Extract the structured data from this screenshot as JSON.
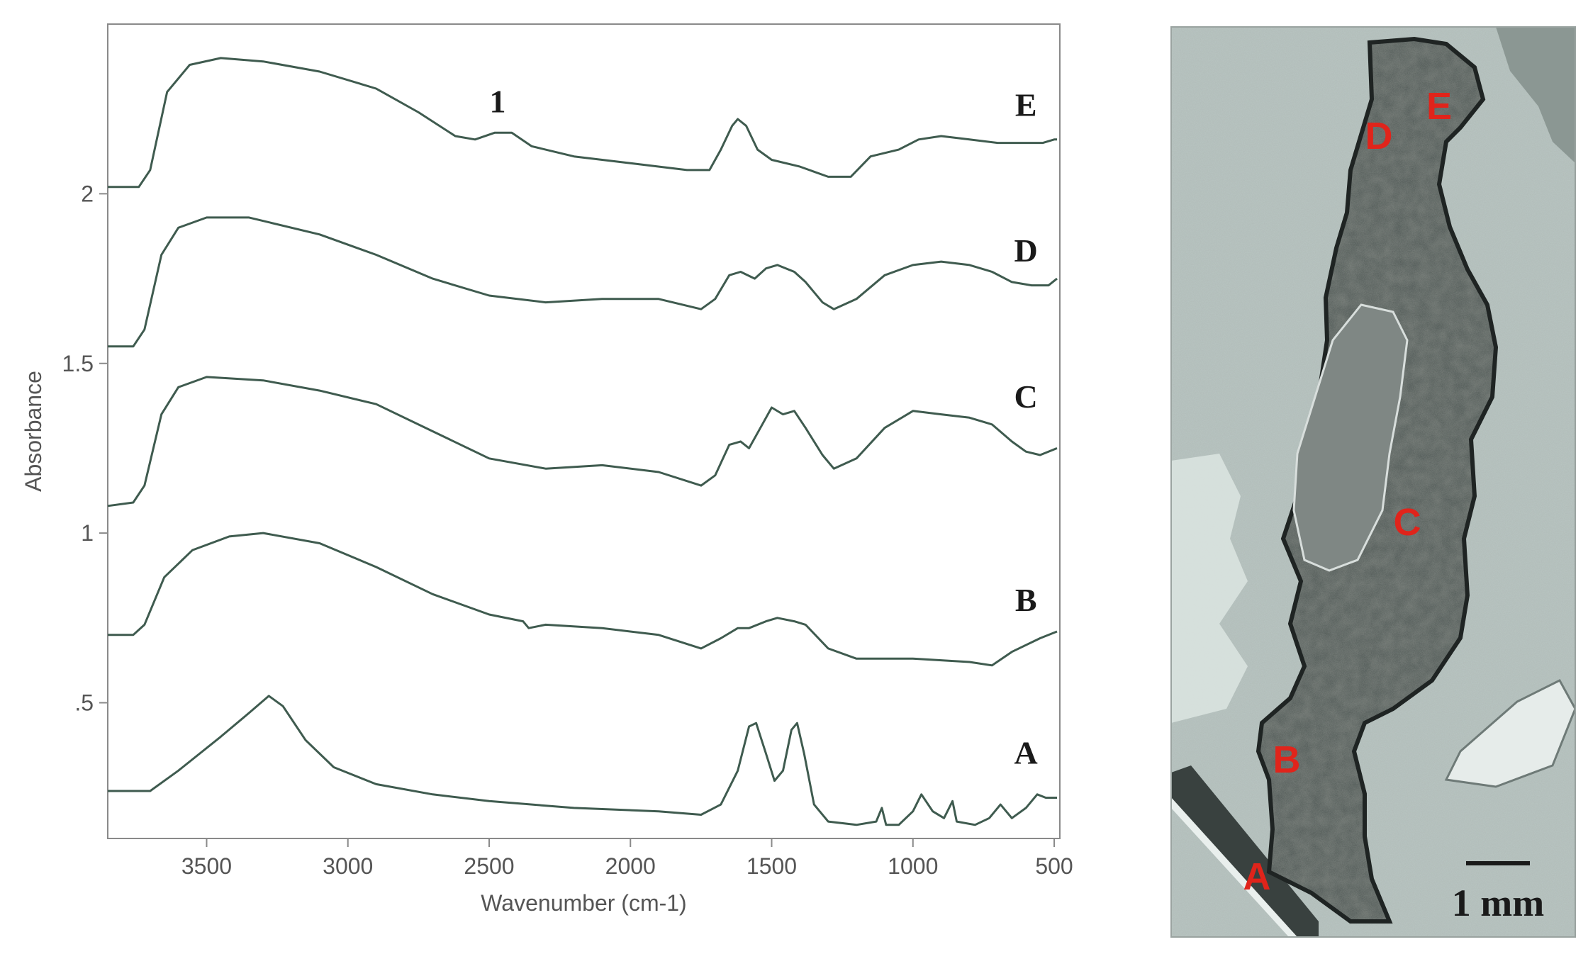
{
  "chart_data": {
    "type": "line",
    "xlabel": "Wavenumber (cm-1)",
    "ylabel": "Absorbance",
    "xlim": [
      3850,
      480
    ],
    "ylim": [
      0.1,
      2.5
    ],
    "x_reversed": true,
    "x_ticks": [
      3500,
      3000,
      2500,
      2000,
      1500,
      1000,
      500
    ],
    "x_tick_labels": [
      "3500",
      "3000",
      "2500",
      "2000",
      "1500",
      "1000",
      "500"
    ],
    "y_ticks": [
      0.5,
      1,
      1.5,
      2
    ],
    "y_tick_labels": [
      ".5",
      "1",
      "1.5",
      "2"
    ],
    "grid": false,
    "annotations": [
      {
        "text": "1",
        "x": 2470,
        "y": 2.24
      }
    ],
    "series": [
      {
        "name": "A",
        "label_pos": [
          600,
          0.32
        ],
        "points": [
          [
            3850,
            0.24
          ],
          [
            3700,
            0.24
          ],
          [
            3600,
            0.3
          ],
          [
            3450,
            0.4
          ],
          [
            3350,
            0.47
          ],
          [
            3280,
            0.52
          ],
          [
            3230,
            0.49
          ],
          [
            3150,
            0.39
          ],
          [
            3050,
            0.31
          ],
          [
            2900,
            0.26
          ],
          [
            2700,
            0.23
          ],
          [
            2500,
            0.21
          ],
          [
            2200,
            0.19
          ],
          [
            1900,
            0.18
          ],
          [
            1750,
            0.17
          ],
          [
            1680,
            0.2
          ],
          [
            1620,
            0.3
          ],
          [
            1580,
            0.43
          ],
          [
            1555,
            0.44
          ],
          [
            1520,
            0.35
          ],
          [
            1490,
            0.27
          ],
          [
            1460,
            0.3
          ],
          [
            1430,
            0.42
          ],
          [
            1410,
            0.44
          ],
          [
            1385,
            0.35
          ],
          [
            1350,
            0.2
          ],
          [
            1300,
            0.15
          ],
          [
            1200,
            0.14
          ],
          [
            1130,
            0.15
          ],
          [
            1110,
            0.19
          ],
          [
            1095,
            0.14
          ],
          [
            1050,
            0.14
          ],
          [
            1000,
            0.18
          ],
          [
            970,
            0.23
          ],
          [
            930,
            0.18
          ],
          [
            890,
            0.16
          ],
          [
            860,
            0.21
          ],
          [
            845,
            0.15
          ],
          [
            780,
            0.14
          ],
          [
            730,
            0.16
          ],
          [
            690,
            0.2
          ],
          [
            650,
            0.16
          ],
          [
            600,
            0.19
          ],
          [
            560,
            0.23
          ],
          [
            530,
            0.22
          ],
          [
            490,
            0.22
          ]
        ]
      },
      {
        "name": "B",
        "label_pos": [
          600,
          0.77
        ],
        "points": [
          [
            3850,
            0.7
          ],
          [
            3760,
            0.7
          ],
          [
            3720,
            0.73
          ],
          [
            3650,
            0.87
          ],
          [
            3550,
            0.95
          ],
          [
            3420,
            0.99
          ],
          [
            3300,
            1.0
          ],
          [
            3100,
            0.97
          ],
          [
            2900,
            0.9
          ],
          [
            2700,
            0.82
          ],
          [
            2500,
            0.76
          ],
          [
            2380,
            0.74
          ],
          [
            2360,
            0.72
          ],
          [
            2300,
            0.73
          ],
          [
            2100,
            0.72
          ],
          [
            1900,
            0.7
          ],
          [
            1750,
            0.66
          ],
          [
            1680,
            0.69
          ],
          [
            1620,
            0.72
          ],
          [
            1580,
            0.72
          ],
          [
            1520,
            0.74
          ],
          [
            1480,
            0.75
          ],
          [
            1420,
            0.74
          ],
          [
            1380,
            0.73
          ],
          [
            1300,
            0.66
          ],
          [
            1200,
            0.63
          ],
          [
            1000,
            0.63
          ],
          [
            800,
            0.62
          ],
          [
            720,
            0.61
          ],
          [
            650,
            0.65
          ],
          [
            550,
            0.69
          ],
          [
            490,
            0.71
          ]
        ]
      },
      {
        "name": "C",
        "label_pos": [
          600,
          1.37
        ],
        "points": [
          [
            3850,
            1.08
          ],
          [
            3760,
            1.09
          ],
          [
            3720,
            1.14
          ],
          [
            3660,
            1.35
          ],
          [
            3600,
            1.43
          ],
          [
            3500,
            1.46
          ],
          [
            3300,
            1.45
          ],
          [
            3100,
            1.42
          ],
          [
            2900,
            1.38
          ],
          [
            2700,
            1.3
          ],
          [
            2500,
            1.22
          ],
          [
            2300,
            1.19
          ],
          [
            2100,
            1.2
          ],
          [
            1900,
            1.18
          ],
          [
            1750,
            1.14
          ],
          [
            1700,
            1.17
          ],
          [
            1650,
            1.26
          ],
          [
            1610,
            1.27
          ],
          [
            1580,
            1.25
          ],
          [
            1540,
            1.31
          ],
          [
            1500,
            1.37
          ],
          [
            1460,
            1.35
          ],
          [
            1420,
            1.36
          ],
          [
            1380,
            1.31
          ],
          [
            1320,
            1.23
          ],
          [
            1280,
            1.19
          ],
          [
            1200,
            1.22
          ],
          [
            1100,
            1.31
          ],
          [
            1000,
            1.36
          ],
          [
            900,
            1.35
          ],
          [
            800,
            1.34
          ],
          [
            720,
            1.32
          ],
          [
            650,
            1.27
          ],
          [
            600,
            1.24
          ],
          [
            550,
            1.23
          ],
          [
            490,
            1.25
          ]
        ]
      },
      {
        "name": "D",
        "label_pos": [
          600,
          1.8
        ],
        "points": [
          [
            3850,
            1.55
          ],
          [
            3760,
            1.55
          ],
          [
            3720,
            1.6
          ],
          [
            3660,
            1.82
          ],
          [
            3600,
            1.9
          ],
          [
            3500,
            1.93
          ],
          [
            3350,
            1.93
          ],
          [
            3100,
            1.88
          ],
          [
            2900,
            1.82
          ],
          [
            2700,
            1.75
          ],
          [
            2500,
            1.7
          ],
          [
            2300,
            1.68
          ],
          [
            2100,
            1.69
          ],
          [
            1900,
            1.69
          ],
          [
            1750,
            1.66
          ],
          [
            1700,
            1.69
          ],
          [
            1650,
            1.76
          ],
          [
            1610,
            1.77
          ],
          [
            1560,
            1.75
          ],
          [
            1520,
            1.78
          ],
          [
            1480,
            1.79
          ],
          [
            1420,
            1.77
          ],
          [
            1380,
            1.74
          ],
          [
            1320,
            1.68
          ],
          [
            1280,
            1.66
          ],
          [
            1200,
            1.69
          ],
          [
            1100,
            1.76
          ],
          [
            1000,
            1.79
          ],
          [
            900,
            1.8
          ],
          [
            800,
            1.79
          ],
          [
            720,
            1.77
          ],
          [
            650,
            1.74
          ],
          [
            580,
            1.73
          ],
          [
            520,
            1.73
          ],
          [
            490,
            1.75
          ]
        ]
      },
      {
        "name": "E",
        "label_pos": [
          600,
          2.23
        ],
        "points": [
          [
            3850,
            2.02
          ],
          [
            3740,
            2.02
          ],
          [
            3700,
            2.07
          ],
          [
            3640,
            2.3
          ],
          [
            3560,
            2.38
          ],
          [
            3450,
            2.4
          ],
          [
            3300,
            2.39
          ],
          [
            3100,
            2.36
          ],
          [
            2900,
            2.31
          ],
          [
            2750,
            2.24
          ],
          [
            2620,
            2.17
          ],
          [
            2550,
            2.16
          ],
          [
            2480,
            2.18
          ],
          [
            2420,
            2.18
          ],
          [
            2350,
            2.14
          ],
          [
            2200,
            2.11
          ],
          [
            2000,
            2.09
          ],
          [
            1800,
            2.07
          ],
          [
            1720,
            2.07
          ],
          [
            1680,
            2.13
          ],
          [
            1640,
            2.2
          ],
          [
            1620,
            2.22
          ],
          [
            1590,
            2.2
          ],
          [
            1550,
            2.13
          ],
          [
            1500,
            2.1
          ],
          [
            1400,
            2.08
          ],
          [
            1300,
            2.05
          ],
          [
            1220,
            2.05
          ],
          [
            1150,
            2.11
          ],
          [
            1050,
            2.13
          ],
          [
            980,
            2.16
          ],
          [
            900,
            2.17
          ],
          [
            800,
            2.16
          ],
          [
            700,
            2.15
          ],
          [
            600,
            2.15
          ],
          [
            540,
            2.15
          ],
          [
            500,
            2.16
          ],
          [
            490,
            2.16
          ]
        ]
      }
    ]
  },
  "photo": {
    "labels": [
      {
        "text": "A"
      },
      {
        "text": "B"
      },
      {
        "text": "C"
      },
      {
        "text": "D"
      },
      {
        "text": "E"
      }
    ],
    "scale_bar_label": "1 mm"
  }
}
